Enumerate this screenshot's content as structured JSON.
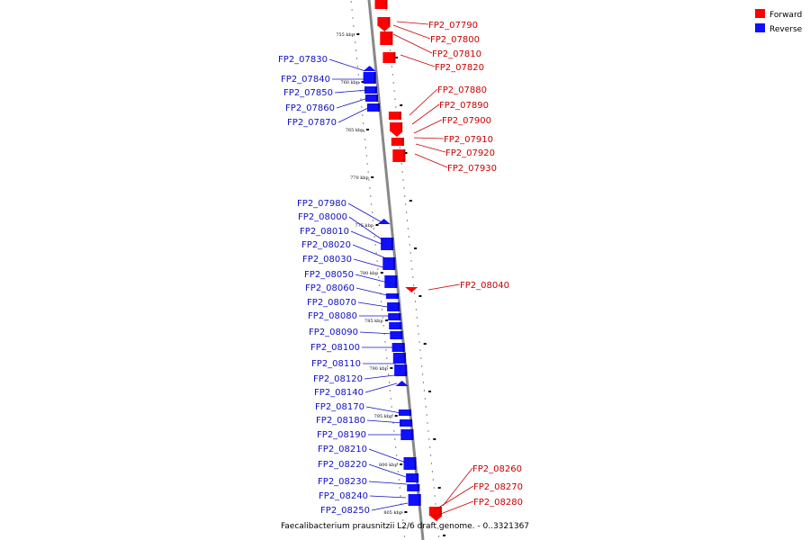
{
  "legend": {
    "forward": {
      "label": "Forward",
      "color": "#ff0000"
    },
    "reverse": {
      "label": "Reverse",
      "color": "#1010ff"
    }
  },
  "caption": "Faecalibacterium prausnitzii L2/6 draft genome. - 0..3321367",
  "ticks": [
    "755 kbp",
    "760 kbp",
    "765 kbp",
    "770 kbp",
    "775 kbp",
    "780 kbp",
    "785 kbp",
    "790 kbp",
    "795 kbp",
    "800 kbp",
    "805 kbp"
  ],
  "forward_genes": [
    "FP2_07790",
    "FP2_07800",
    "FP2_07810",
    "FP2_07820",
    "FP2_07880",
    "FP2_07890",
    "FP2_07900",
    "FP2_07910",
    "FP2_07920",
    "FP2_07930",
    "FP2_08040",
    "FP2_08260",
    "FP2_08270",
    "FP2_08280"
  ],
  "reverse_genes": [
    "FP2_07830",
    "FP2_07840",
    "FP2_07850",
    "FP2_07860",
    "FP2_07870",
    "FP2_07980",
    "FP2_08000",
    "FP2_08010",
    "FP2_08020",
    "FP2_08030",
    "FP2_08050",
    "FP2_08060",
    "FP2_08070",
    "FP2_08080",
    "FP2_08090",
    "FP2_08100",
    "FP2_08110",
    "FP2_08120",
    "FP2_08140",
    "FP2_08170",
    "FP2_08180",
    "FP2_08190",
    "FP2_08210",
    "FP2_08220",
    "FP2_08230",
    "FP2_08240",
    "FP2_08250"
  ]
}
